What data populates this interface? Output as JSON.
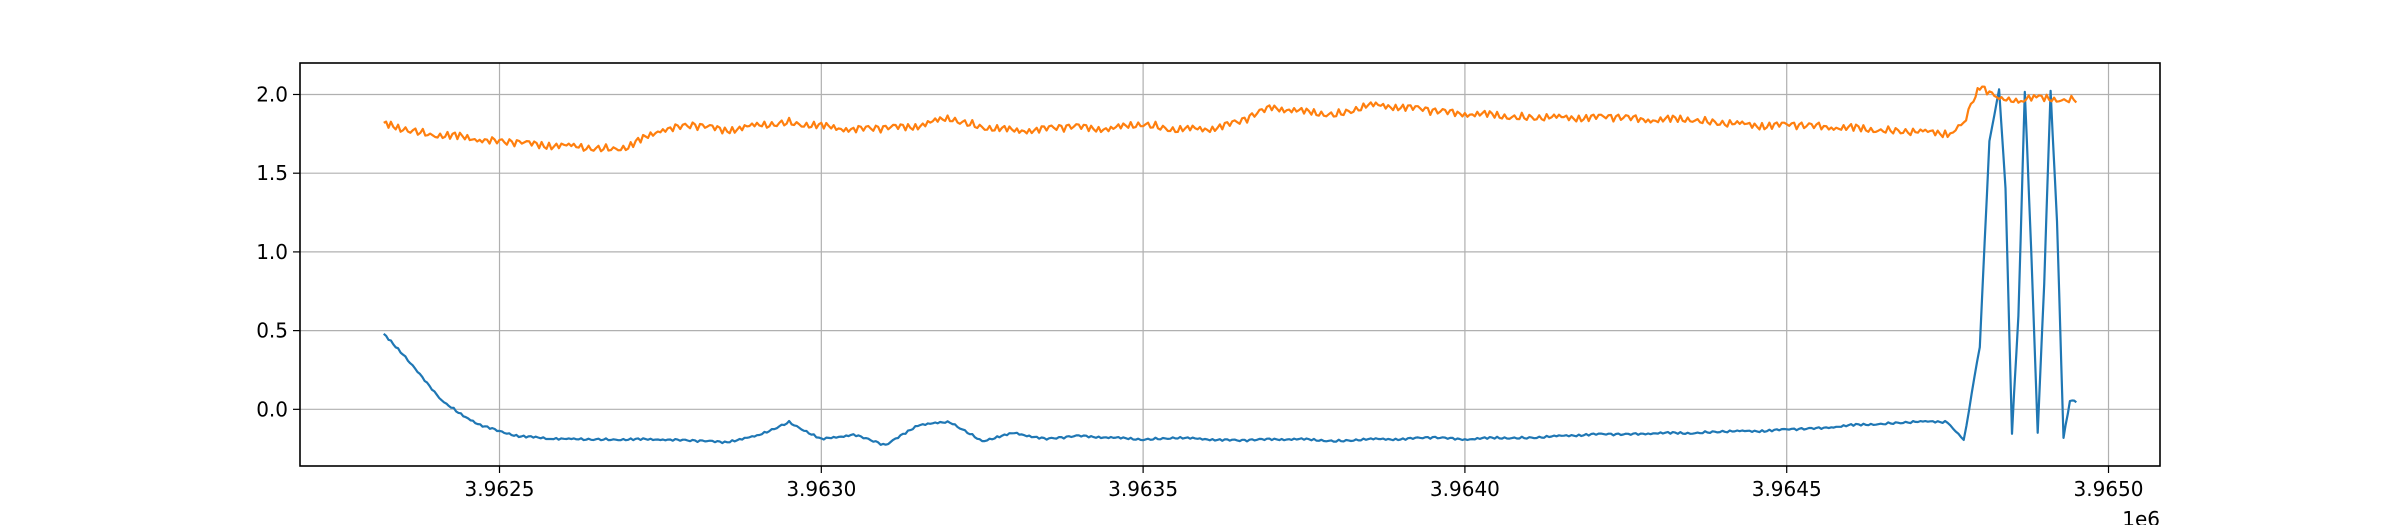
{
  "chart_data": {
    "type": "line",
    "title": "",
    "xlabel": "",
    "ylabel": "",
    "x_offset_label": "1e6",
    "xlim": [
      3962190,
      3965080
    ],
    "ylim": [
      -0.36,
      2.2
    ],
    "grid": true,
    "x_ticks": [
      {
        "value": 3962500,
        "label": "3.9625"
      },
      {
        "value": 3963000,
        "label": "3.9630"
      },
      {
        "value": 3963500,
        "label": "3.9635"
      },
      {
        "value": 3964000,
        "label": "3.9640"
      },
      {
        "value": 3964500,
        "label": "3.9645"
      },
      {
        "value": 3965000,
        "label": "3.9650"
      }
    ],
    "y_ticks": [
      {
        "value": 0.0,
        "label": "0.0"
      },
      {
        "value": 0.5,
        "label": "0.5"
      },
      {
        "value": 1.0,
        "label": "1.0"
      },
      {
        "value": 1.5,
        "label": "1.5"
      },
      {
        "value": 2.0,
        "label": "2.0"
      }
    ],
    "series": [
      {
        "color": "#1f77b4",
        "x": [
          3962320,
          3962350,
          3962380,
          3962410,
          3962440,
          3962470,
          3962500,
          3962530,
          3962560,
          3962600,
          3962650,
          3962700,
          3962750,
          3962800,
          3962850,
          3962900,
          3962950,
          3963000,
          3963050,
          3963100,
          3963150,
          3963200,
          3963250,
          3963300,
          3963350,
          3963400,
          3963450,
          3963500,
          3963550,
          3963600,
          3963650,
          3963700,
          3963750,
          3963800,
          3963850,
          3963900,
          3963950,
          3964000,
          3964050,
          3964100,
          3964150,
          3964200,
          3964250,
          3964300,
          3964350,
          3964400,
          3964450,
          3964500,
          3964550,
          3964600,
          3964650,
          3964700,
          3964750,
          3964775,
          3964800,
          3964815,
          3964830,
          3964840,
          3964850,
          3964860,
          3964870,
          3964880,
          3964890,
          3964900,
          3964910,
          3964920,
          3964930,
          3964940,
          3964950
        ],
        "values": [
          0.48,
          0.35,
          0.2,
          0.06,
          -0.03,
          -0.1,
          -0.14,
          -0.17,
          -0.18,
          -0.19,
          -0.19,
          -0.19,
          -0.19,
          -0.2,
          -0.21,
          -0.17,
          -0.08,
          -0.19,
          -0.16,
          -0.23,
          -0.1,
          -0.08,
          -0.2,
          -0.15,
          -0.19,
          -0.17,
          -0.18,
          -0.19,
          -0.18,
          -0.19,
          -0.2,
          -0.19,
          -0.19,
          -0.2,
          -0.19,
          -0.19,
          -0.18,
          -0.19,
          -0.18,
          -0.18,
          -0.17,
          -0.16,
          -0.16,
          -0.15,
          -0.15,
          -0.14,
          -0.14,
          -0.13,
          -0.12,
          -0.1,
          -0.09,
          -0.08,
          -0.08,
          -0.2,
          0.4,
          1.7,
          2.03,
          1.4,
          -0.15,
          0.6,
          2.02,
          1.0,
          -0.15,
          0.8,
          2.02,
          1.2,
          -0.18,
          0.05,
          0.05
        ]
      },
      {
        "color": "#ff7f0e",
        "x": [
          3962320,
          3962350,
          3962400,
          3962450,
          3962500,
          3962550,
          3962600,
          3962650,
          3962700,
          3962750,
          3962800,
          3962850,
          3962900,
          3962950,
          3963000,
          3963050,
          3963100,
          3963150,
          3963200,
          3963250,
          3963300,
          3963350,
          3963400,
          3963450,
          3963500,
          3963550,
          3963600,
          3963650,
          3963700,
          3963750,
          3963800,
          3963850,
          3963900,
          3963950,
          3964000,
          3964050,
          3964100,
          3964150,
          3964200,
          3964250,
          3964300,
          3964350,
          3964400,
          3964450,
          3964500,
          3964550,
          3964600,
          3964650,
          3964700,
          3964750,
          3964775,
          3964790,
          3964800,
          3964830,
          3964860,
          3964900,
          3964950
        ],
        "values": [
          1.82,
          1.78,
          1.75,
          1.73,
          1.7,
          1.68,
          1.67,
          1.66,
          1.67,
          1.78,
          1.8,
          1.77,
          1.8,
          1.83,
          1.8,
          1.78,
          1.78,
          1.8,
          1.85,
          1.8,
          1.77,
          1.78,
          1.79,
          1.78,
          1.82,
          1.78,
          1.78,
          1.82,
          1.92,
          1.89,
          1.88,
          1.93,
          1.92,
          1.89,
          1.88,
          1.87,
          1.86,
          1.85,
          1.85,
          1.85,
          1.84,
          1.85,
          1.82,
          1.8,
          1.8,
          1.8,
          1.79,
          1.78,
          1.76,
          1.75,
          1.8,
          1.97,
          2.05,
          1.96,
          1.97,
          1.98,
          1.97
        ]
      }
    ]
  }
}
